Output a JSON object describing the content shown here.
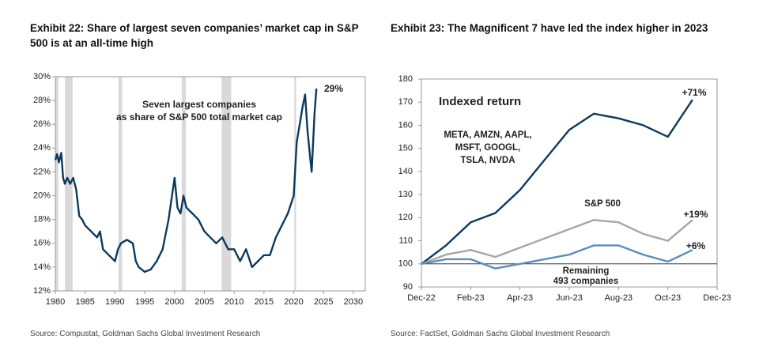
{
  "chart_data": [
    {
      "type": "line",
      "title": "Exhibit 22: Share of largest seven companies’ market cap in S&P 500 is at an all-time high",
      "source": "Source: Compustat, Goldman Sachs Global Investment Research",
      "annotation": [
        "Seven largest companies",
        "as share of S&P 500 total market cap"
      ],
      "x": [
        1980,
        1980.3,
        1980.6,
        1981,
        1981.3,
        1981.6,
        1982,
        1982.5,
        1983,
        1983.5,
        1984,
        1984.5,
        1985,
        1986,
        1987,
        1987.5,
        1988,
        1989,
        1990,
        1990.5,
        1991,
        1992,
        1993,
        1993.5,
        1994,
        1995,
        1996,
        1997,
        1998,
        1999,
        2000,
        2000.5,
        2001,
        2001.5,
        2002,
        2003,
        2004,
        2005,
        2006,
        2007,
        2008,
        2009,
        2010,
        2011,
        2012,
        2013,
        2014,
        2015,
        2016,
        2017,
        2018,
        2019,
        2020,
        2020.5,
        2021,
        2021.5,
        2021.9,
        2022.3,
        2022.8,
        2023,
        2023.5,
        2023.8
      ],
      "series": [
        {
          "name": "Seven largest companies share",
          "color": "#0d3a5c",
          "end_label": "29%",
          "values": [
            23,
            23.5,
            22.8,
            23.6,
            21.5,
            21,
            21.5,
            21,
            21.5,
            20.5,
            18.3,
            18,
            17.5,
            17,
            16.5,
            17,
            15.5,
            15,
            14.5,
            15.5,
            16,
            16.3,
            16,
            14.5,
            14,
            13.6,
            13.8,
            14.5,
            15.5,
            18,
            21.5,
            19,
            18.5,
            20,
            19,
            18.5,
            18,
            17,
            16.5,
            16,
            16.5,
            15.5,
            15.5,
            14.5,
            15.5,
            14,
            14.5,
            15,
            15,
            16.5,
            17.5,
            18.5,
            20,
            24.5,
            26,
            27.5,
            28.5,
            25.5,
            23,
            22,
            27,
            29
          ]
        }
      ],
      "shaded": [
        [
          1980.0,
          1980.5
        ],
        [
          1981.6,
          1982.9
        ],
        [
          1990.6,
          1991.2
        ],
        [
          2001.2,
          2001.9
        ],
        [
          2007.9,
          2009.5
        ],
        [
          2020.1,
          2020.4
        ]
      ],
      "shade_color": "#d9d9d9",
      "xlim": [
        1980,
        2032
      ],
      "xticks": [
        1980,
        1985,
        1990,
        1995,
        2000,
        2005,
        2010,
        2015,
        2020,
        2025,
        2030
      ],
      "ylim": [
        12,
        30
      ],
      "yticks": [
        {
          "value": 12,
          "label": "12%"
        },
        {
          "value": 14,
          "label": "14%"
        },
        {
          "value": 16,
          "label": "16%"
        },
        {
          "value": 18,
          "label": "18%"
        },
        {
          "value": 20,
          "label": "20%"
        },
        {
          "value": 22,
          "label": "22%"
        },
        {
          "value": 24,
          "label": "24%"
        },
        {
          "value": 26,
          "label": "26%"
        },
        {
          "value": 28,
          "label": "28%"
        },
        {
          "value": 30,
          "label": "30%"
        }
      ],
      "grid": false
    },
    {
      "type": "line",
      "title": "Exhibit 23: The Magnificent 7 have led the index higher in 2023",
      "source": "Source: FactSet, Goldman Sachs Global Investment Research",
      "annotation": [
        "Indexed return"
      ],
      "x": [
        "2022-12",
        "2023-01",
        "2023-02",
        "2023-03",
        "2023-04",
        "2023-05",
        "2023-06",
        "2023-07",
        "2023-08",
        "2023-09",
        "2023-10",
        "2023-11"
      ],
      "series": [
        {
          "name": [
            "META, AMZN, AAPL,",
            "MSFT, GOOGL,",
            "TSLA, NVDA"
          ],
          "color": "#0d3a5c",
          "end_label": "+71%",
          "values": [
            100,
            108,
            118,
            122,
            132,
            145,
            158,
            165,
            163,
            160,
            155,
            171
          ]
        },
        {
          "name": [
            "S&P 500"
          ],
          "color": "#a6a6a6",
          "end_label": "+19%",
          "values": [
            100,
            104,
            106,
            103,
            107,
            111,
            115,
            119,
            118,
            113,
            110,
            119
          ]
        },
        {
          "name": [
            "Remaining",
            "493 companies"
          ],
          "color": "#5b8db8",
          "end_label": "+6%",
          "values": [
            100,
            102,
            102,
            98,
            100,
            102,
            104,
            108,
            108,
            104,
            101,
            106
          ]
        }
      ],
      "hline": 100,
      "xlim": [
        "2022-12",
        "2023-12"
      ],
      "xticks": [
        {
          "value": "2022-12",
          "label": "Dec-22"
        },
        {
          "value": "2023-02",
          "label": "Feb-23"
        },
        {
          "value": "2023-04",
          "label": "Apr-23"
        },
        {
          "value": "2023-06",
          "label": "Jun-23"
        },
        {
          "value": "2023-08",
          "label": "Aug-23"
        },
        {
          "value": "2023-10",
          "label": "Oct-23"
        },
        {
          "value": "2023-12",
          "label": "Dec-23"
        }
      ],
      "ylim": [
        90,
        180
      ],
      "yticks": [
        90,
        100,
        110,
        120,
        130,
        140,
        150,
        160,
        170,
        180
      ],
      "grid": false
    }
  ]
}
